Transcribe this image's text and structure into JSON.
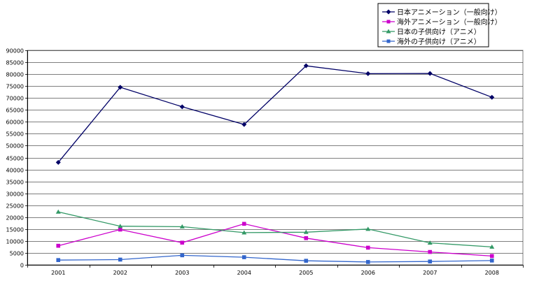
{
  "chart_data": {
    "type": "line",
    "title": "",
    "xlabel": "",
    "ylabel": "",
    "ylim": [
      0,
      90000
    ],
    "y_tick_step": 5000,
    "grid": true,
    "legend_position": "top-right",
    "categories": [
      "2001",
      "2002",
      "2003",
      "2004",
      "2005",
      "2006",
      "2007",
      "2008"
    ],
    "y_ticks": [
      "0",
      "5000",
      "10000",
      "15000",
      "20000",
      "25000",
      "30000",
      "35000",
      "40000",
      "45000",
      "50000",
      "55000",
      "60000",
      "65000",
      "70000",
      "75000",
      "80000",
      "85000",
      "90000"
    ],
    "series": [
      {
        "name": "日本アニメーション（一般向け）",
        "color": "#000066",
        "marker": "diamond",
        "values": [
          43000,
          74500,
          66300,
          58900,
          83500,
          80200,
          80300,
          70300
        ]
      },
      {
        "name": "海外アニメーション（一般向け）",
        "color": "#cc00cc",
        "marker": "square",
        "values": [
          8000,
          14800,
          9300,
          17200,
          11200,
          7200,
          5400,
          3700
        ]
      },
      {
        "name": "日本の子供向け（アニメ）",
        "color": "#339966",
        "marker": "triangle",
        "values": [
          22200,
          16200,
          16000,
          13500,
          13700,
          15000,
          9200,
          7500
        ]
      },
      {
        "name": "海外の子供向け（アニメ）",
        "color": "#3366cc",
        "marker": "square",
        "values": [
          2000,
          2200,
          4000,
          3200,
          1700,
          1200,
          1400,
          1800
        ]
      }
    ]
  }
}
